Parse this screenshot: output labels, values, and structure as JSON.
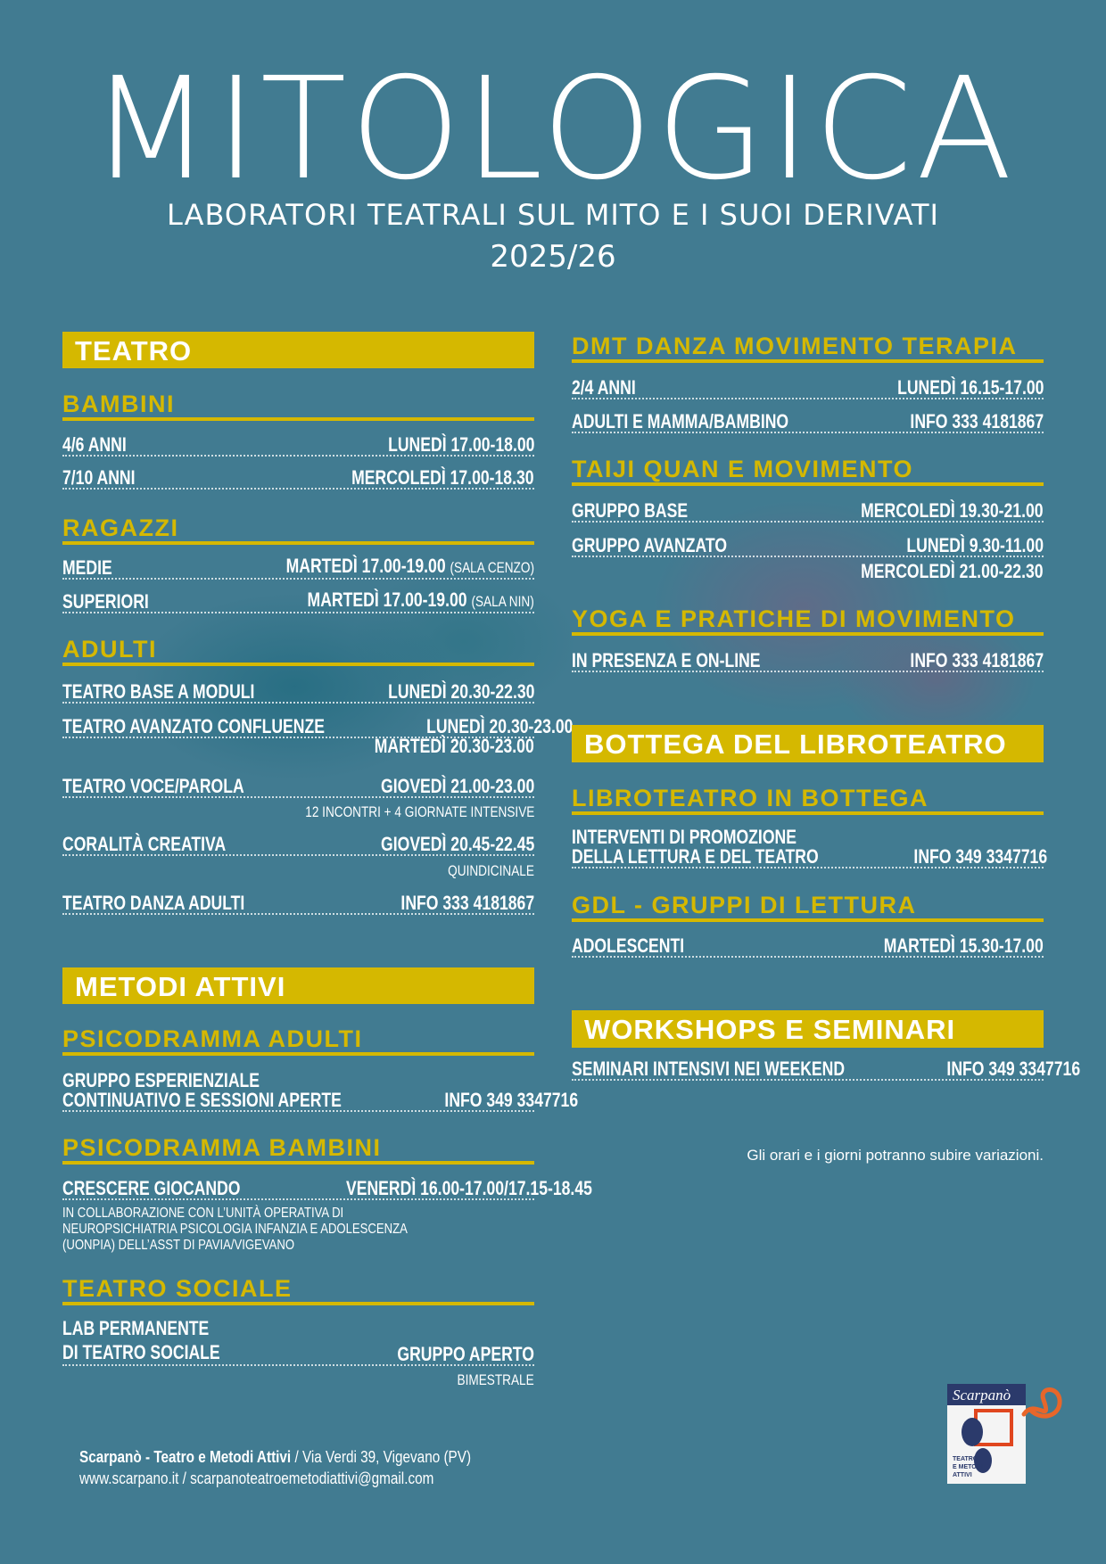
{
  "header": {
    "title": "MITOLOGICA",
    "subtitle": "LABORATORI TEATRALI SUL MITO E I SUOI DERIVATI",
    "year": "2025/26"
  },
  "teatro": {
    "title": "TEATRO",
    "bambini": {
      "heading": "BAMBINI",
      "rows": [
        {
          "label": "4/6 ANNI",
          "value": "LUNEDÌ 17.00-18.00"
        },
        {
          "label": "7/10 ANNI",
          "value": "MERCOLEDÌ 17.00-18.30"
        }
      ]
    },
    "ragazzi": {
      "heading": "RAGAZZI",
      "rows": [
        {
          "label": "MEDIE",
          "value": "MARTEDÌ 17.00-19.00",
          "note": "(SALA CENZO)"
        },
        {
          "label": "SUPERIORI",
          "value": "MARTEDÌ 17.00-19.00",
          "note": "(SALA NIN)"
        }
      ]
    },
    "adulti": {
      "heading": "ADULTI",
      "rows": [
        {
          "label": "TEATRO BASE A MODULI",
          "value": "LUNEDÌ 20.30-22.30"
        },
        {
          "label": "TEATRO AVANZATO CONFLUENZE",
          "value": "LUNEDÌ 20.30-23.00",
          "extra": "MARTEDÌ 20.30-23.00"
        },
        {
          "label": "TEATRO VOCE/PAROLA",
          "value": "GIOVEDÌ 21.00-23.00",
          "extra": "12 INCONTRI + 4 GIORNATE INTENSIVE"
        },
        {
          "label": "CORALITÀ CREATIVA",
          "value": "GIOVEDÌ 20.45-22.45",
          "extra": "QUINDICINALE"
        },
        {
          "label": "TEATRO DANZA ADULTI",
          "value": "INFO 333 4181867"
        }
      ]
    }
  },
  "metodi": {
    "title": "METODI ATTIVI",
    "psico_adulti": {
      "heading": "PSICODRAMMA ADULTI",
      "rows": [
        {
          "label_line1": "GRUPPO ESPERIENZIALE",
          "label_line2": "CONTINUATIVO E SESSIONI APERTE",
          "value": "INFO 349 3347716"
        }
      ]
    },
    "psico_bambini": {
      "heading": "PSICODRAMMA BAMBINI",
      "rows": [
        {
          "label": "CRESCERE GIOCANDO",
          "value": "VENERDÌ 16.00-17.00/17.15-18.45"
        }
      ],
      "notes": [
        "IN COLLABORAZIONE CON L’UNITÀ OPERATIVA DI",
        "NEUROPSICHIATRIA PSICOLOGIA INFANZIA E ADOLESCENZA",
        "(UONPIA) DELL’ASST DI PAVIA/VIGEVANO"
      ]
    },
    "teatro_sociale": {
      "heading": "TEATRO SOCIALE",
      "rows": [
        {
          "label_line1": "LAB PERMANENTE",
          "label_line2": "DI TEATRO SOCIALE",
          "value": "GRUPPO APERTO",
          "extra": "BIMESTRALE"
        }
      ]
    }
  },
  "dmt": {
    "heading": "DMT DANZA MOVIMENTO TERAPIA",
    "rows": [
      {
        "label": "2/4 ANNI",
        "value": "LUNEDÌ 16.15-17.00"
      },
      {
        "label": "ADULTI E MAMMA/BAMBINO",
        "value": "INFO 333 4181867"
      }
    ]
  },
  "taiji": {
    "heading": "TAIJI QUAN E MOVIMENTO",
    "rows": [
      {
        "label": "GRUPPO BASE",
        "value": "MERCOLEDÌ 19.30-21.00"
      },
      {
        "label": "GRUPPO AVANZATO",
        "value": "LUNEDÌ 9.30-11.00",
        "extra": "MERCOLEDÌ 21.00-22.30"
      }
    ]
  },
  "yoga": {
    "heading": "YOGA E PRATICHE DI MOVIMENTO",
    "rows": [
      {
        "label": "IN PRESENZA E ON-LINE",
        "value": "INFO 333 4181867"
      }
    ]
  },
  "bottega": {
    "title": "BOTTEGA DEL LIBROTEATRO",
    "libroteatro": {
      "heading": "LIBROTEATRO IN BOTTEGA",
      "rows": [
        {
          "label_line1": "INTERVENTI DI PROMOZIONE",
          "label_line2": "DELLA LETTURA E DEL TEATRO",
          "value": "INFO 349 3347716"
        }
      ]
    },
    "gdl": {
      "heading": "GDL - GRUPPI DI LETTURA",
      "rows": [
        {
          "label": "ADOLESCENTI",
          "value": "MARTEDÌ 15.30-17.00"
        }
      ]
    }
  },
  "workshops": {
    "title": "WORKSHOPS E SEMINARI",
    "rows": [
      {
        "label": "SEMINARI INTENSIVI NEI WEEKEND",
        "value": "INFO 349 3347716"
      }
    ]
  },
  "disclaimer": "Gli orari e i giorni potranno subire variazioni.",
  "footer": {
    "org": "Scarpanò - Teatro e Metodi Attivi",
    "address": " / Via Verdi 39, Vigevano (PV)",
    "web_email": "www.scarpano.it / scarpanoteatroemetodiattivi@gmail.com"
  },
  "logo": {
    "name": "Scarpanò",
    "subtext": "TEATRO E METODI ATTIVI"
  },
  "colors": {
    "background": "#417b91",
    "accent": "#d5b800",
    "text": "#ffffff"
  }
}
